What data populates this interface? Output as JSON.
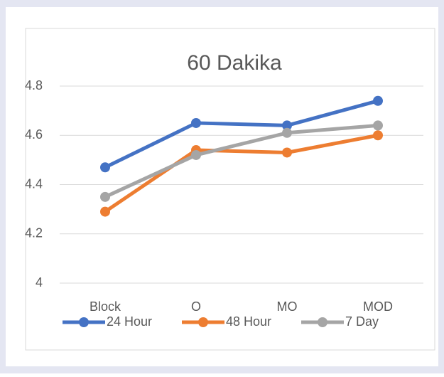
{
  "chart_data": {
    "type": "line",
    "title": "60 Dakika",
    "categories": [
      "Block",
      "O",
      "MO",
      "MOD"
    ],
    "series": [
      {
        "name": "24 Hour",
        "color": "#4472c4",
        "values": [
          4.47,
          4.65,
          4.64,
          4.74
        ]
      },
      {
        "name": "48 Hour",
        "color": "#ed7d31",
        "values": [
          4.29,
          4.54,
          4.53,
          4.6
        ]
      },
      {
        "name": "7 Day",
        "color": "#a5a5a5",
        "values": [
          4.35,
          4.52,
          4.61,
          4.64
        ]
      }
    ],
    "ylim": [
      4,
      4.8
    ],
    "yticks": [
      4,
      4.2,
      4.4,
      4.6,
      4.8
    ],
    "grid": true,
    "legend": "bottom"
  }
}
